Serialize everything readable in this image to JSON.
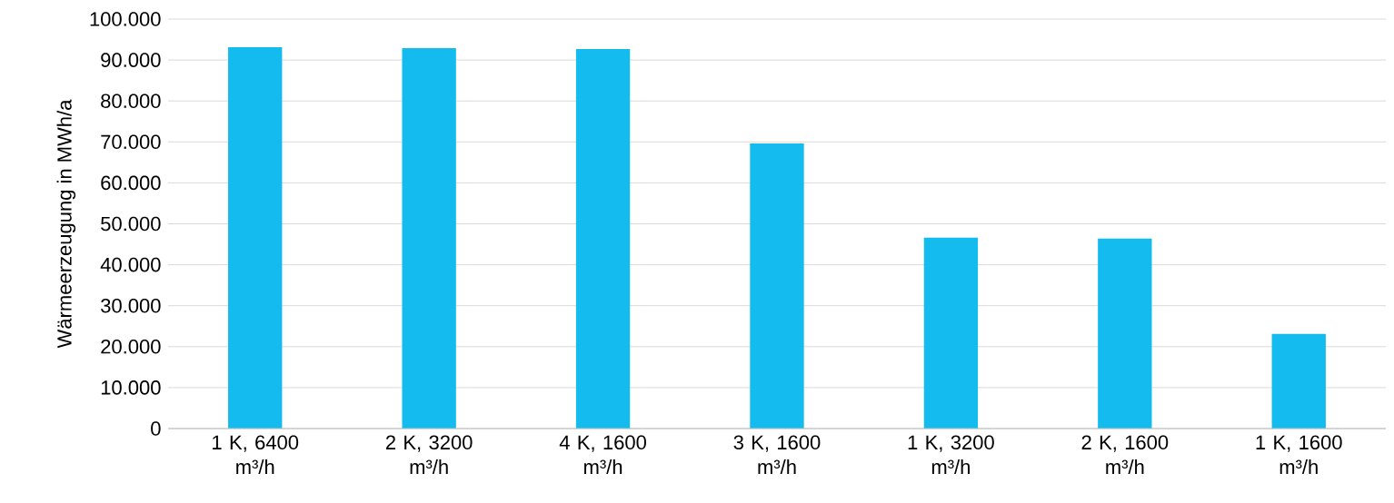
{
  "chart_data": {
    "type": "bar",
    "ylabel": "Wärmeerzeugung in MWh/a",
    "categories": [
      "1 K, 6400 m³/h",
      "2 K, 3200 m³/h",
      "4 K, 1600 m³/h",
      "3 K, 1600 m³/h",
      "1 K, 3200 m³/h",
      "2 K, 1600 m³/h",
      "1 K, 1600 m³/h"
    ],
    "values": [
      93100,
      92900,
      92700,
      69600,
      46600,
      46400,
      23100
    ],
    "color": "#13bbee",
    "ylim": [
      0,
      100000
    ],
    "yticks": [
      {
        "value": 0,
        "label": "0"
      },
      {
        "value": 10000,
        "label": "10.000"
      },
      {
        "value": 20000,
        "label": "20.000"
      },
      {
        "value": 30000,
        "label": "30.000"
      },
      {
        "value": 40000,
        "label": "40.000"
      },
      {
        "value": 50000,
        "label": "50.000"
      },
      {
        "value": 60000,
        "label": "60.000"
      },
      {
        "value": 70000,
        "label": "70.000"
      },
      {
        "value": 80000,
        "label": "80.000"
      },
      {
        "value": 90000,
        "label": "90.000"
      },
      {
        "value": 100000,
        "label": "100.000"
      }
    ],
    "grid": "y"
  }
}
